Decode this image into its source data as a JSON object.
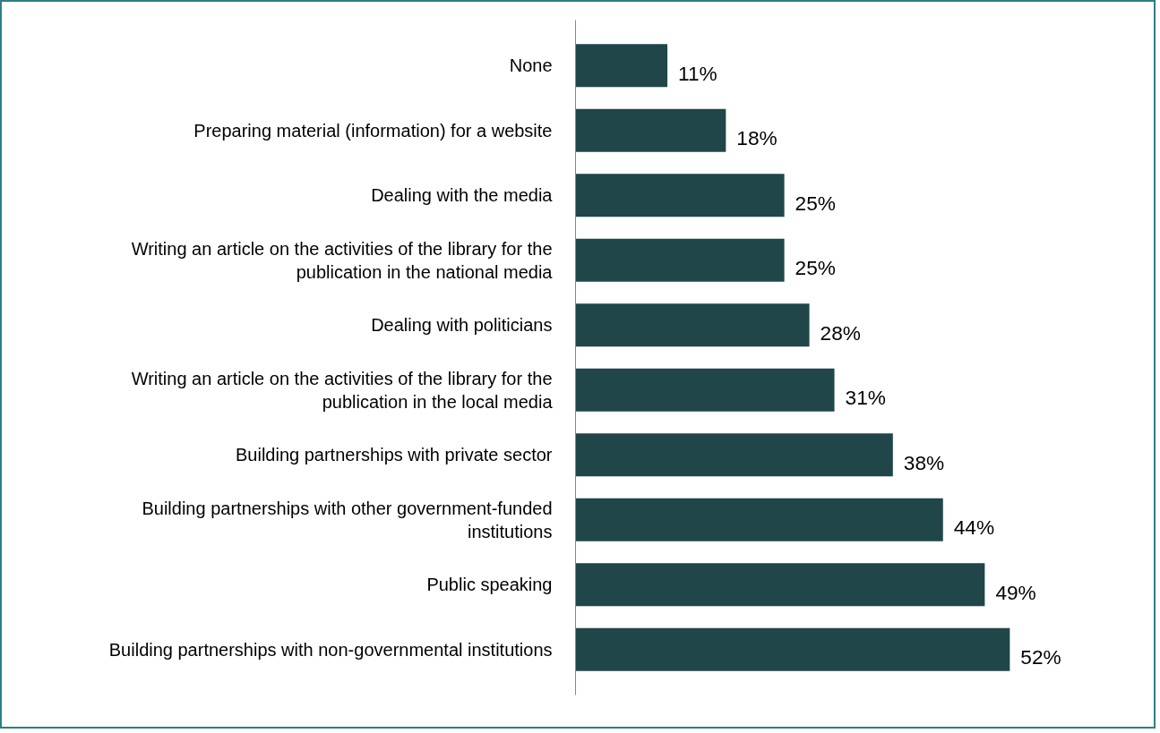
{
  "chart_data": {
    "type": "bar",
    "orientation": "horizontal",
    "categories": [
      "None",
      "Preparing material (information) for a website",
      "Dealing with the media",
      "Writing an article on the activities of the library for the publication in the national media",
      "Dealing with politicians",
      "Writing an article on the activities of the library for the publication in the local media",
      "Building partnerships with private sector",
      "Building partnerships with other government-funded institutions",
      "Public speaking",
      "Building partnerships with non-governmental institutions"
    ],
    "values": [
      11,
      18,
      25,
      25,
      28,
      31,
      38,
      44,
      49,
      52
    ],
    "value_labels": [
      "11%",
      "18%",
      "25%",
      "25%",
      "28%",
      "31%",
      "38%",
      "44%",
      "49%",
      "52%"
    ],
    "color": "#204649",
    "grid": false
  }
}
